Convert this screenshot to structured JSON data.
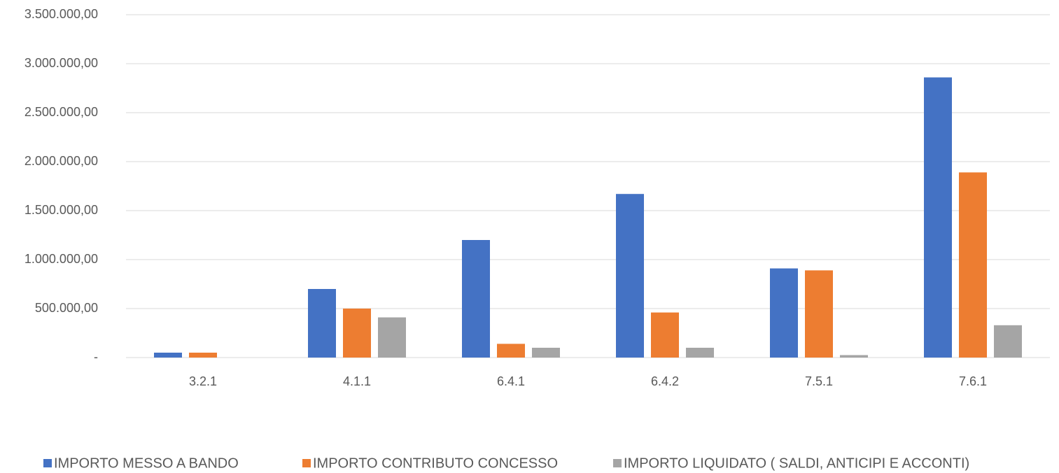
{
  "chart_data": {
    "type": "bar",
    "categories": [
      "3.2.1",
      "4.1.1",
      "6.4.1",
      "6.4.2",
      "7.5.1",
      "7.6.1"
    ],
    "series": [
      {
        "name": "IMPORTO MESSO A BANDO",
        "color": "#4472c4",
        "values": [
          50000,
          700000,
          1200000,
          1670000,
          910000,
          2860000
        ]
      },
      {
        "name": "IMPORTO CONTRIBUTO CONCESSO",
        "color": "#ed7d31",
        "values": [
          50000,
          500000,
          140000,
          460000,
          890000,
          1890000
        ]
      },
      {
        "name": "IMPORTO LIQUIDATO ( SALDI, ANTICIPI E ACCONTI)",
        "color": "#a5a5a5",
        "values": [
          0,
          410000,
          100000,
          100000,
          25000,
          330000
        ]
      }
    ],
    "ylim": [
      0,
      3500000
    ],
    "yticks": [
      {
        "value": 0,
        "label": "-"
      },
      {
        "value": 500000,
        "label": "500.000,00"
      },
      {
        "value": 1000000,
        "label": "1.000.000,00"
      },
      {
        "value": 1500000,
        "label": "1.500.000,00"
      },
      {
        "value": 2000000,
        "label": "2.000.000,00"
      },
      {
        "value": 2500000,
        "label": "2.500.000,00"
      },
      {
        "value": 3000000,
        "label": "3.000.000,00"
      },
      {
        "value": 3500000,
        "label": "3.500.000,00"
      }
    ],
    "grid": true,
    "legend": "bottom"
  }
}
